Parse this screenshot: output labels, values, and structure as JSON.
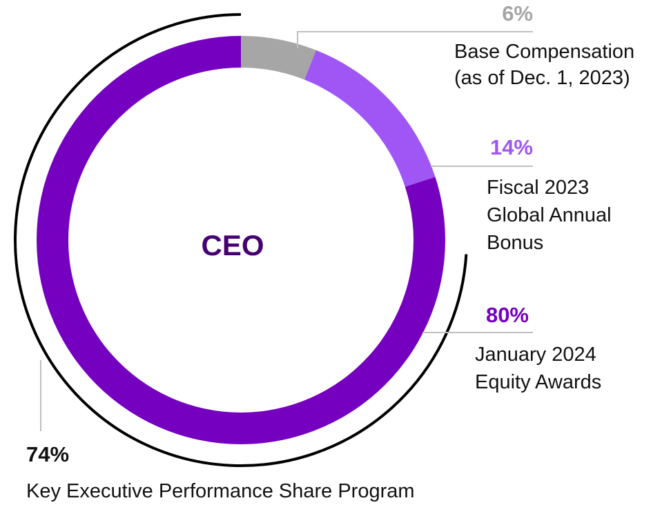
{
  "chart_data": {
    "type": "pie",
    "style": "donut",
    "center_label": "CEO",
    "slices": [
      {
        "label": [
          "Base Compensation",
          "(as of Dec. 1, 2023)"
        ],
        "value_label": "6%",
        "value": 6,
        "color": "#a6a6a6"
      },
      {
        "label": [
          "Fiscal 2023",
          "Global Annual",
          "Bonus"
        ],
        "value_label": "14%",
        "value": 14,
        "color": "#a055f5"
      },
      {
        "label": [
          "January 2024",
          "Equity Awards"
        ],
        "value_label": "80%",
        "value": 80,
        "color": "#7500c0"
      }
    ],
    "sub_segment": {
      "label": "Key Executive Performance Share Program",
      "value_label": "74%",
      "value": 74
    },
    "colors": {
      "center_text": "#460073",
      "leader_line": "#bfbfbf",
      "bracket_arc": "#000000"
    }
  }
}
